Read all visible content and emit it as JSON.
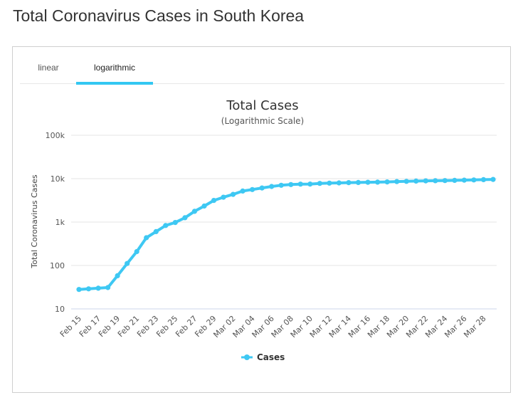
{
  "page": {
    "title": "Total Coronavirus Cases in South Korea"
  },
  "tabs": [
    {
      "label": "linear",
      "active": false
    },
    {
      "label": "logarithmic",
      "active": true
    }
  ],
  "colors": {
    "accent": "#33c7f2",
    "series": "#3ec8f3",
    "grid": "#e6e6e6",
    "text": "#333333"
  },
  "chart_data": {
    "type": "line",
    "title": "Total Cases",
    "subtitle": "(Logarithmic Scale)",
    "xlabel": "",
    "ylabel": "Total Coronavirus Cases",
    "yscale": "log",
    "ylim": [
      10,
      100000
    ],
    "yticks": [
      {
        "value": 10,
        "label": "10"
      },
      {
        "value": 100,
        "label": "100"
      },
      {
        "value": 1000,
        "label": "1k"
      },
      {
        "value": 10000,
        "label": "10k"
      },
      {
        "value": 100000,
        "label": "100k"
      }
    ],
    "xtick_labels": [
      "Feb 15",
      "Feb 17",
      "Feb 19",
      "Feb 21",
      "Feb 23",
      "Feb 25",
      "Feb 27",
      "Feb 29",
      "Mar 02",
      "Mar 04",
      "Mar 06",
      "Mar 08",
      "Mar 10",
      "Mar 12",
      "Mar 14",
      "Mar 16",
      "Mar 18",
      "Mar 20",
      "Mar 22",
      "Mar 24",
      "Mar 26",
      "Mar 28"
    ],
    "grid": true,
    "legend": {
      "position": "bottom-center"
    },
    "x": [
      "Feb 15",
      "Feb 16",
      "Feb 17",
      "Feb 18",
      "Feb 19",
      "Feb 20",
      "Feb 21",
      "Feb 22",
      "Feb 23",
      "Feb 24",
      "Feb 25",
      "Feb 26",
      "Feb 27",
      "Feb 28",
      "Feb 29",
      "Mar 01",
      "Mar 02",
      "Mar 03",
      "Mar 04",
      "Mar 05",
      "Mar 06",
      "Mar 07",
      "Mar 08",
      "Mar 09",
      "Mar 10",
      "Mar 11",
      "Mar 12",
      "Mar 13",
      "Mar 14",
      "Mar 15",
      "Mar 16",
      "Mar 17",
      "Mar 18",
      "Mar 19",
      "Mar 20",
      "Mar 21",
      "Mar 22",
      "Mar 23",
      "Mar 24",
      "Mar 25",
      "Mar 26",
      "Mar 27",
      "Mar 28",
      "Mar 29"
    ],
    "series": [
      {
        "name": "Cases",
        "values": [
          28,
          29,
          30,
          31,
          58,
          111,
          209,
          436,
          602,
          833,
          977,
          1261,
          1766,
          2337,
          3150,
          3736,
          4335,
          5186,
          5621,
          6088,
          6593,
          7041,
          7314,
          7478,
          7513,
          7755,
          7869,
          7979,
          8086,
          8162,
          8236,
          8320,
          8413,
          8565,
          8652,
          8799,
          8897,
          8961,
          9037,
          9137,
          9241,
          9332,
          9478,
          9583
        ]
      }
    ]
  }
}
